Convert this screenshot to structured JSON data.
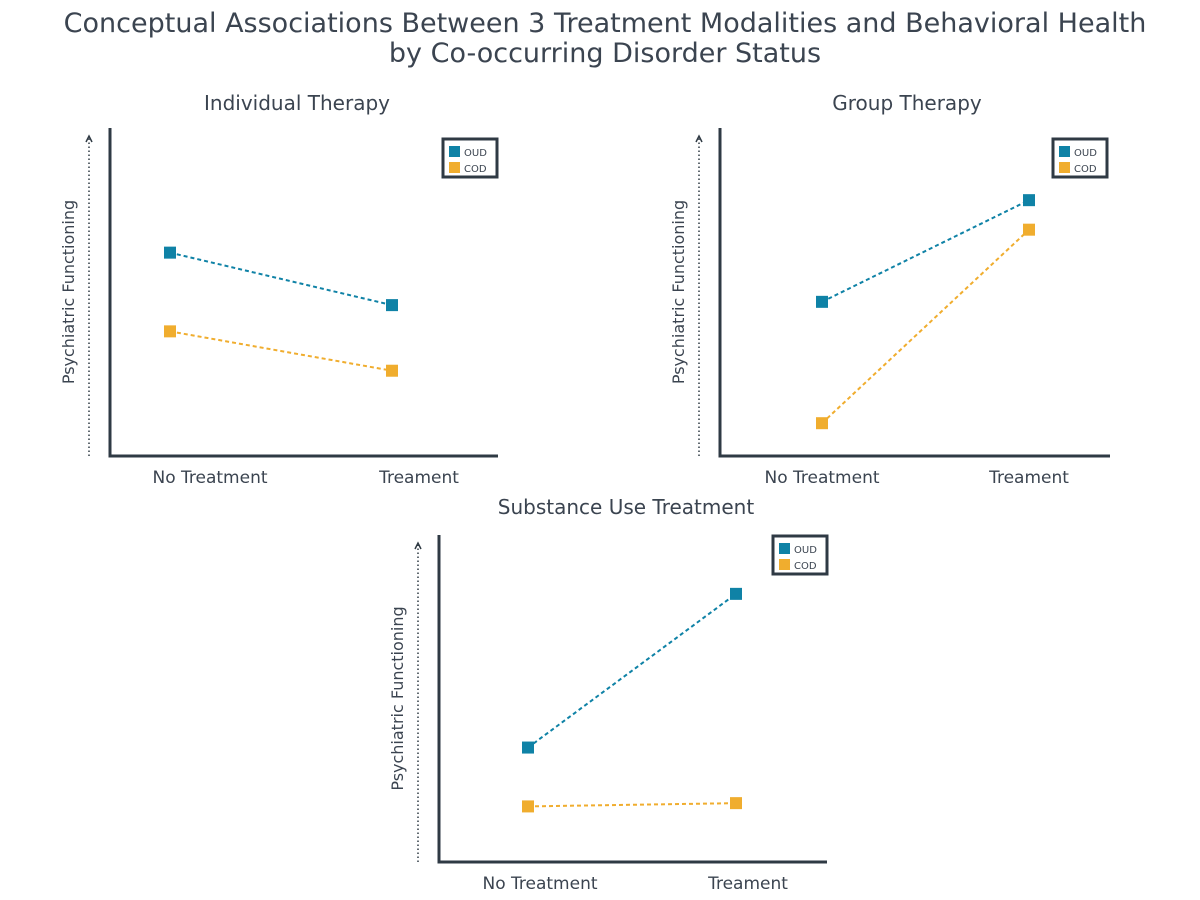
{
  "title_line1": "Conceptual Associations Between 3 Treatment Modalities and Behavioral Health",
  "title_line2": "by Co-occurring Disorder Status",
  "colors": {
    "OUD": "#0f82a6",
    "COD": "#f0ad2e",
    "axis": "#2f3a44",
    "text": "#3b4450"
  },
  "chart_data": [
    {
      "type": "line",
      "title": "Individual Therapy",
      "xlabel": "",
      "ylabel": "Psychiatric Functioning",
      "categories": [
        "No Treatment",
        "Treament"
      ],
      "ylim": [
        0,
        100
      ],
      "legend": "top-right",
      "series": [
        {
          "name": "OUD",
          "values": [
            62,
            46
          ]
        },
        {
          "name": "COD",
          "values": [
            38,
            26
          ]
        }
      ]
    },
    {
      "type": "line",
      "title": "Group Therapy",
      "xlabel": "",
      "ylabel": "Psychiatric Functioning",
      "categories": [
        "No Treatment",
        "Treament"
      ],
      "ylim": [
        0,
        100
      ],
      "legend": "top-right",
      "series": [
        {
          "name": "OUD",
          "values": [
            47,
            78
          ]
        },
        {
          "name": "COD",
          "values": [
            10,
            69
          ]
        }
      ]
    },
    {
      "type": "line",
      "title": "Substance Use Treatment",
      "xlabel": "",
      "ylabel": "Psychiatric Functioning",
      "categories": [
        "No Treatment",
        "Treament"
      ],
      "ylim": [
        0,
        100
      ],
      "legend": "top-right",
      "series": [
        {
          "name": "OUD",
          "values": [
            35,
            82
          ]
        },
        {
          "name": "COD",
          "values": [
            17,
            18
          ]
        }
      ]
    }
  ]
}
